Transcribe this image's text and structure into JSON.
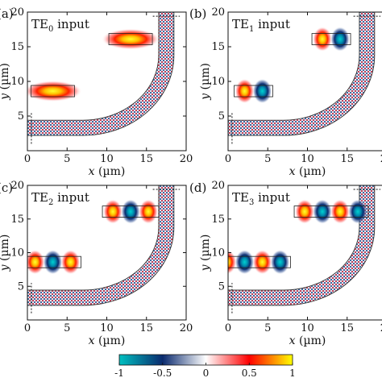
{
  "chart_data": [
    {
      "type": "heatmap",
      "panel_label": "(a)",
      "title_main": "TE",
      "title_sub": "0",
      "title_rest": " input",
      "xlabel": "x",
      "xunit": " (µm)",
      "ylabel": "y",
      "yunit": " (µm)",
      "xlim": [
        0,
        20
      ],
      "ylim": [
        0,
        20
      ],
      "xticks": [
        "0",
        "5",
        "10",
        "15",
        "20"
      ],
      "yticks": [
        "5",
        "10",
        "15",
        "20"
      ],
      "lobes_input": [
        1
      ],
      "lobes_output": [
        1
      ]
    },
    {
      "type": "heatmap",
      "panel_label": "(b)",
      "title_main": "TE",
      "title_sub": "1",
      "title_rest": " input",
      "xlabel": "x",
      "xunit": " (µm)",
      "ylabel": "y",
      "yunit": " (µm)",
      "xlim": [
        0,
        20
      ],
      "ylim": [
        0,
        20
      ],
      "xticks": [
        "0",
        "5",
        "10",
        "15",
        "20"
      ],
      "yticks": [
        "5",
        "10",
        "15",
        "20"
      ],
      "lobes_input": [
        1,
        -1
      ],
      "lobes_output": [
        1,
        -1
      ]
    },
    {
      "type": "heatmap",
      "panel_label": "(c)",
      "title_main": "TE",
      "title_sub": "2",
      "title_rest": " input",
      "xlabel": "x",
      "xunit": " (µm)",
      "ylabel": "y",
      "yunit": " (µm)",
      "xlim": [
        0,
        20
      ],
      "ylim": [
        0,
        20
      ],
      "xticks": [
        "0",
        "5",
        "10",
        "15",
        "20"
      ],
      "yticks": [
        "5",
        "10",
        "15",
        "20"
      ],
      "lobes_input": [
        1,
        -1,
        1
      ],
      "lobes_output": [
        1,
        -1,
        1
      ]
    },
    {
      "type": "heatmap",
      "panel_label": "(d)",
      "title_main": "TE",
      "title_sub": "3",
      "title_rest": " input",
      "xlabel": "x",
      "xunit": " (µm)",
      "ylabel": "y",
      "yunit": " (µm)",
      "xlim": [
        0,
        20
      ],
      "ylim": [
        0,
        20
      ],
      "xticks": [
        "0",
        "5",
        "10",
        "15",
        "20"
      ],
      "yticks": [
        "5",
        "10",
        "15",
        "20"
      ],
      "lobes_input": [
        1,
        -1,
        1,
        -1
      ],
      "lobes_output": [
        1,
        -1,
        1,
        -1
      ]
    }
  ],
  "colorbar": {
    "range": [
      -1,
      1
    ],
    "ticks": [
      "-1",
      "-0.5",
      "0",
      "0.5",
      "1"
    ],
    "colors": [
      "#00c0c0",
      "#0a2a6e",
      "#ffffff",
      "#ff0000",
      "#ffff00"
    ]
  }
}
